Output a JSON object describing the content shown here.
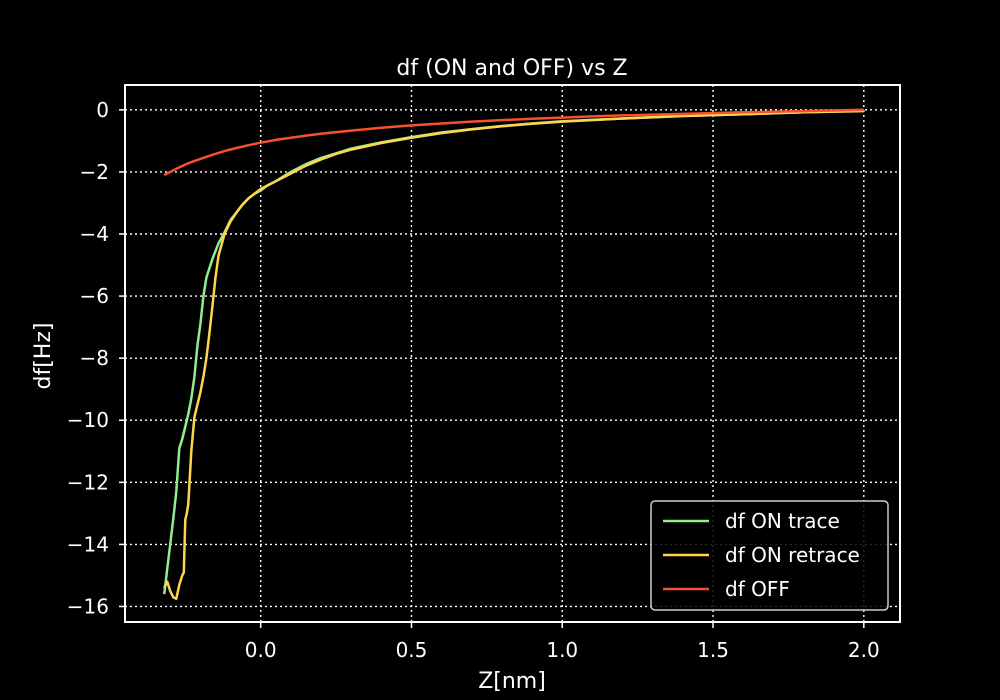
{
  "chart_data": {
    "type": "line",
    "title": "df (ON and OFF) vs Z",
    "xlabel": "Z[nm]",
    "ylabel": "df[Hz]",
    "xlim": [
      -0.45,
      2.12
    ],
    "ylim": [
      -16.5,
      0.8
    ],
    "xticks": [
      0.0,
      0.5,
      1.0,
      1.5,
      2.0
    ],
    "xtick_labels": [
      "0.0",
      "0.5",
      "1.0",
      "1.5",
      "2.0"
    ],
    "yticks": [
      0,
      -2,
      -4,
      -6,
      -8,
      -10,
      -12,
      -14,
      -16
    ],
    "ytick_labels": [
      "0",
      "−2",
      "−4",
      "−6",
      "−8",
      "−10",
      "−12",
      "−14",
      "−16"
    ],
    "grid": true,
    "grid_style": "dotted",
    "legend_position": "lower-right",
    "background": "#000000",
    "foreground": "#ffffff",
    "series": [
      {
        "name": "df ON trace",
        "color": "#90ee90",
        "x": [
          -0.32,
          -0.31,
          -0.3,
          -0.29,
          -0.28,
          -0.27,
          -0.265,
          -0.26,
          -0.25,
          -0.24,
          -0.23,
          -0.22,
          -0.21,
          -0.2,
          -0.19,
          -0.18,
          -0.16,
          -0.14,
          -0.12,
          -0.1,
          -0.08,
          -0.06,
          -0.04,
          -0.02,
          0.0,
          0.02,
          0.05,
          0.08,
          0.1,
          0.15,
          0.2,
          0.25,
          0.3,
          0.4,
          0.5,
          0.6,
          0.7,
          0.8,
          0.9,
          1.0,
          1.2,
          1.4,
          1.6,
          1.8,
          2.0
        ],
        "y": [
          -15.6,
          -14.8,
          -14.0,
          -13.2,
          -12.3,
          -10.9,
          -10.75,
          -10.6,
          -10.2,
          -9.8,
          -9.3,
          -8.6,
          -7.6,
          -6.9,
          -6.0,
          -5.4,
          -4.8,
          -4.3,
          -3.95,
          -3.55,
          -3.3,
          -3.05,
          -2.85,
          -2.7,
          -2.6,
          -2.45,
          -2.3,
          -2.12,
          -2.0,
          -1.75,
          -1.55,
          -1.4,
          -1.25,
          -1.05,
          -0.88,
          -0.73,
          -0.62,
          -0.52,
          -0.44,
          -0.37,
          -0.28,
          -0.2,
          -0.14,
          -0.08,
          -0.03
        ]
      },
      {
        "name": "df ON retrace",
        "color": "#ffd54f",
        "x": [
          -0.32,
          -0.31,
          -0.3,
          -0.29,
          -0.28,
          -0.27,
          -0.26,
          -0.255,
          -0.25,
          -0.245,
          -0.24,
          -0.23,
          -0.22,
          -0.21,
          -0.2,
          -0.19,
          -0.18,
          -0.17,
          -0.16,
          -0.15,
          -0.14,
          -0.12,
          -0.1,
          -0.08,
          -0.06,
          -0.04,
          -0.02,
          0.0,
          0.02,
          0.05,
          0.08,
          0.1,
          0.15,
          0.2,
          0.25,
          0.3,
          0.4,
          0.5,
          0.6,
          0.7,
          0.8,
          0.9,
          1.0,
          1.2,
          1.4,
          1.6,
          1.8,
          2.0
        ],
        "y": [
          -15.4,
          -15.2,
          -15.5,
          -15.7,
          -15.75,
          -15.3,
          -15.0,
          -14.9,
          -13.2,
          -13.0,
          -12.7,
          -11.0,
          -9.9,
          -9.5,
          -9.1,
          -8.6,
          -8.0,
          -7.2,
          -6.3,
          -5.4,
          -4.7,
          -4.0,
          -3.6,
          -3.3,
          -3.05,
          -2.85,
          -2.7,
          -2.55,
          -2.45,
          -2.3,
          -2.15,
          -2.05,
          -1.8,
          -1.6,
          -1.42,
          -1.28,
          -1.07,
          -0.9,
          -0.75,
          -0.63,
          -0.53,
          -0.45,
          -0.38,
          -0.28,
          -0.2,
          -0.14,
          -0.08,
          -0.04
        ]
      },
      {
        "name": "df OFF",
        "color": "#f4512c",
        "x": [
          -0.32,
          -0.28,
          -0.24,
          -0.2,
          -0.16,
          -0.12,
          -0.08,
          -0.04,
          0.0,
          0.05,
          0.1,
          0.15,
          0.2,
          0.3,
          0.4,
          0.5,
          0.6,
          0.7,
          0.8,
          0.9,
          1.0,
          1.1,
          1.2,
          1.4,
          1.6,
          1.8,
          2.0
        ],
        "y": [
          -2.1,
          -1.9,
          -1.72,
          -1.58,
          -1.45,
          -1.33,
          -1.23,
          -1.14,
          -1.06,
          -0.97,
          -0.9,
          -0.83,
          -0.77,
          -0.67,
          -0.58,
          -0.5,
          -0.44,
          -0.38,
          -0.33,
          -0.29,
          -0.25,
          -0.21,
          -0.18,
          -0.13,
          -0.08,
          -0.04,
          0.0
        ]
      }
    ]
  }
}
